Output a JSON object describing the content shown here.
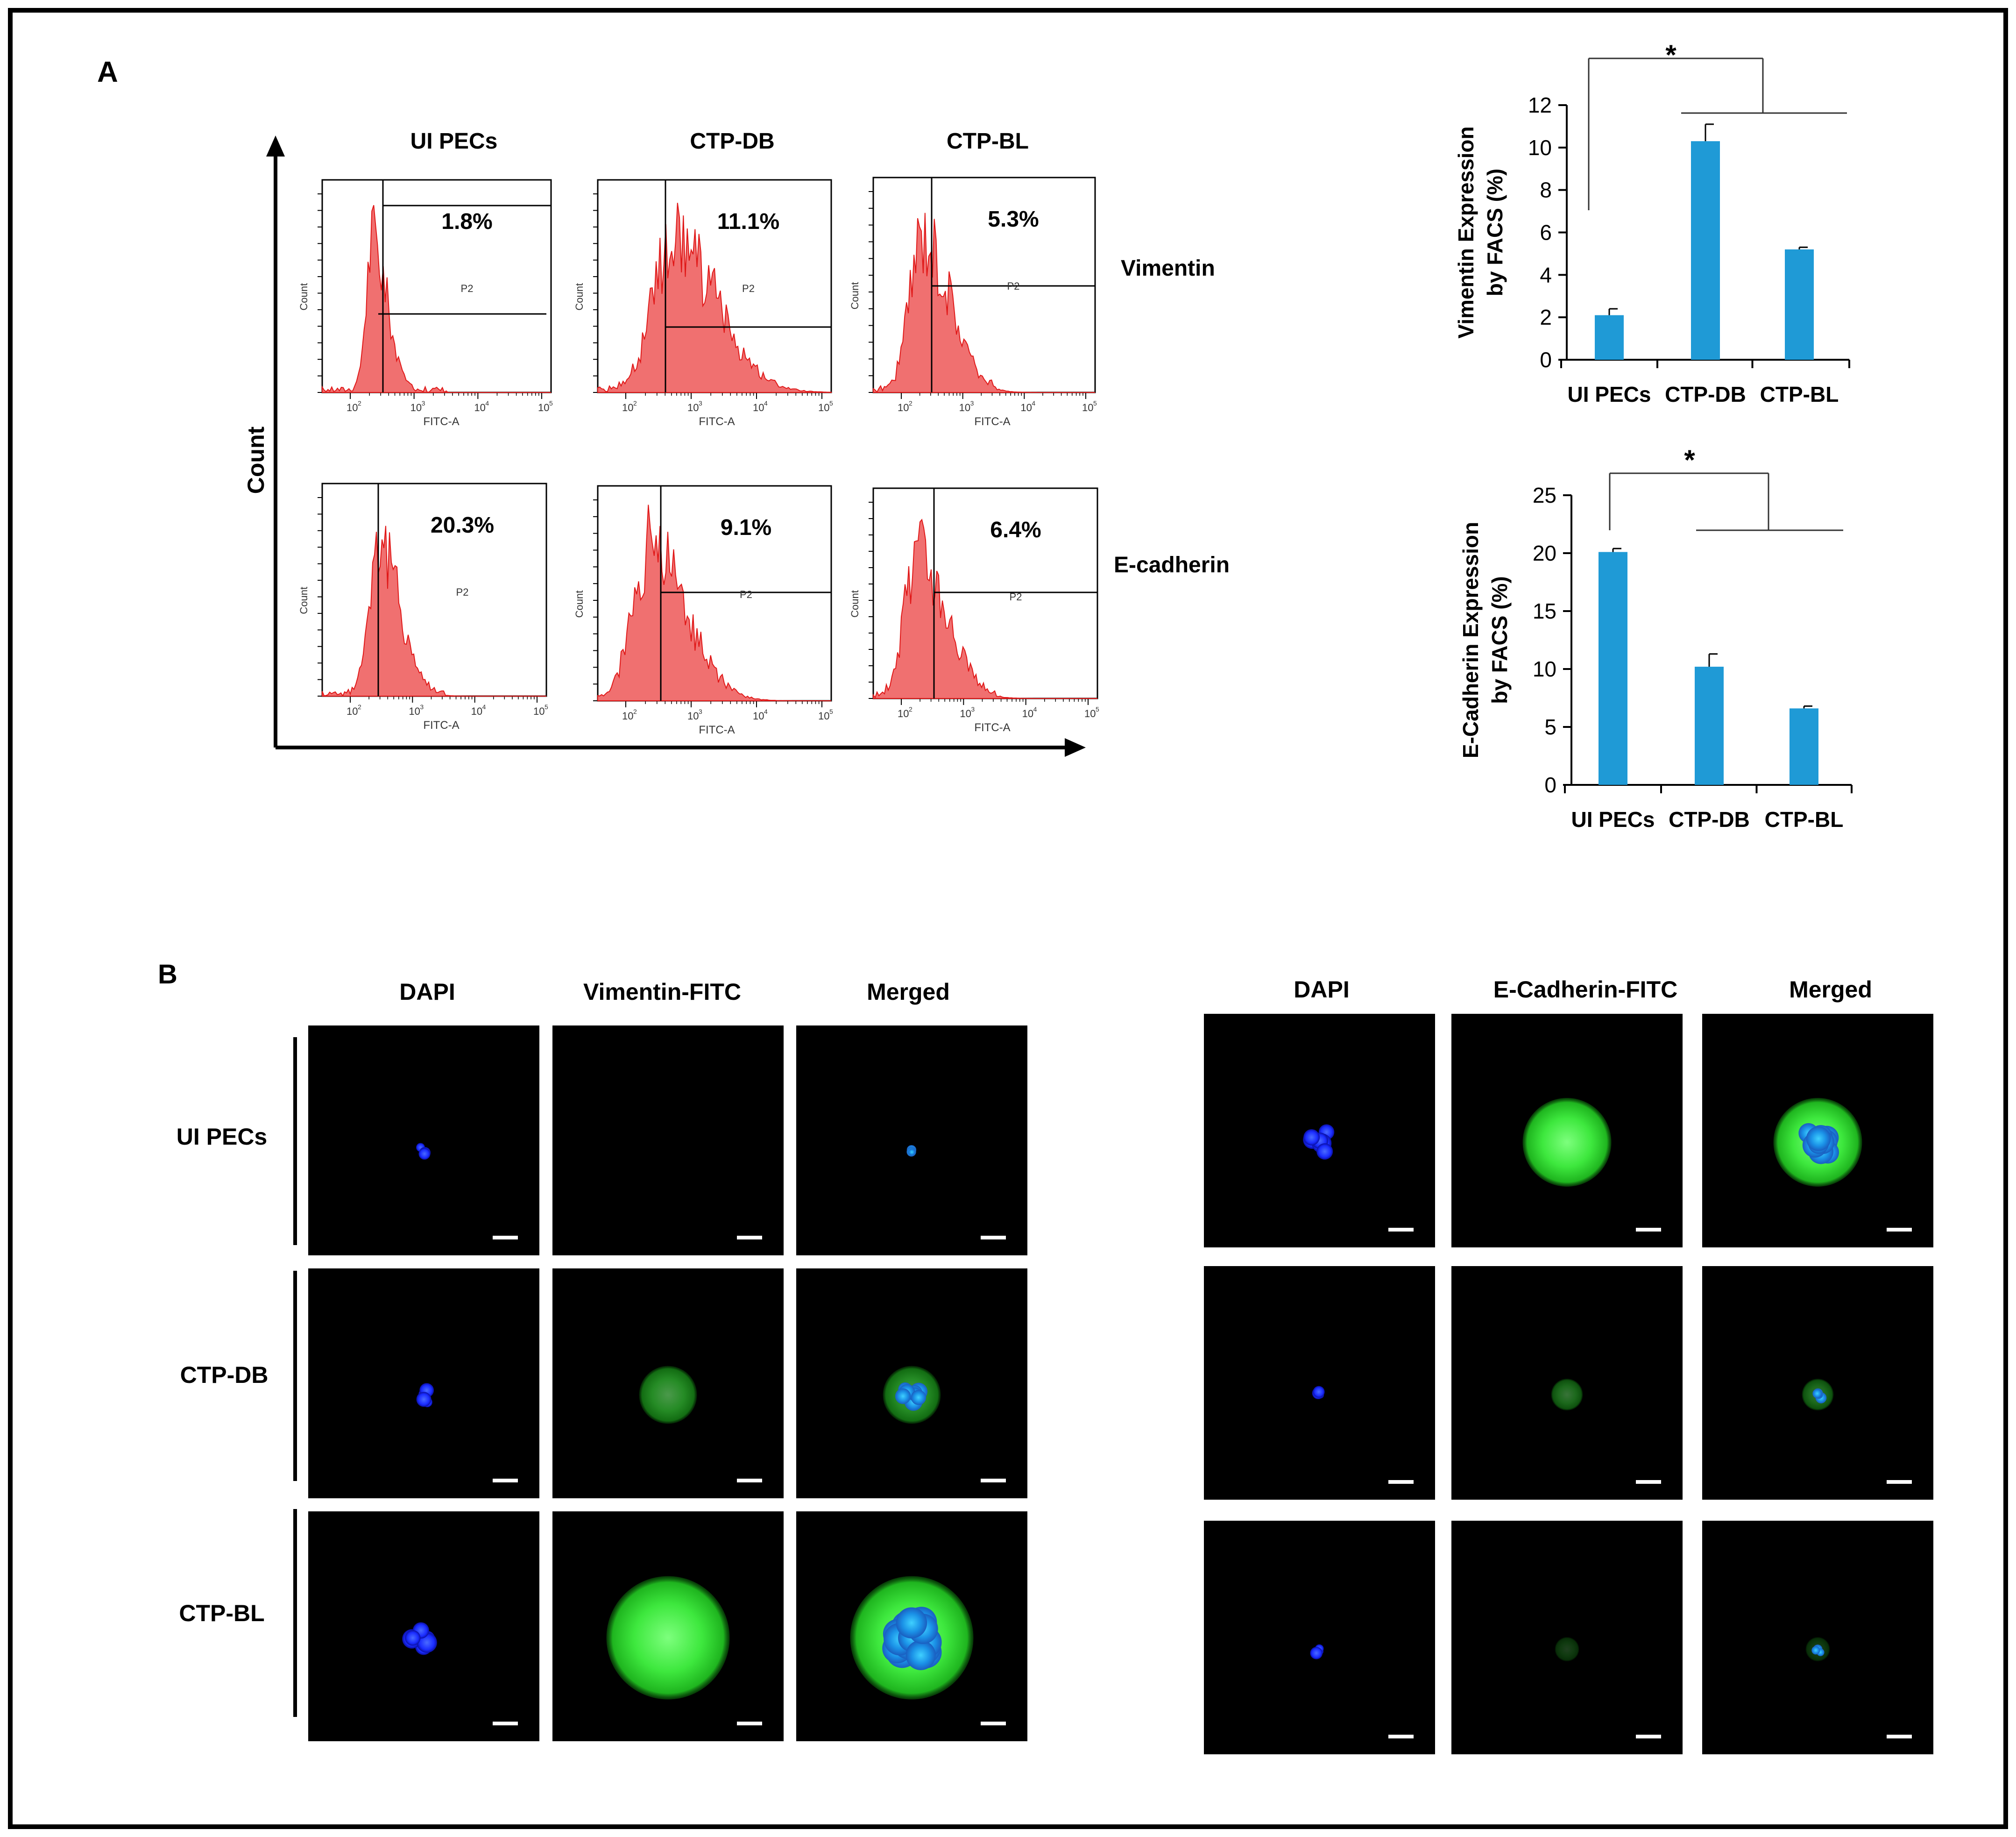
{
  "panel_labels": {
    "a": "A",
    "b": "B"
  },
  "histograms": {
    "count_axis_label": "Count",
    "columns": [
      "UI PECs",
      "CTP-DB",
      "CTP-BL"
    ],
    "rows": [
      {
        "marker": "Vimentin",
        "percents": [
          "1.8%",
          "11.1%",
          "5.3%"
        ]
      },
      {
        "marker": "E-cadherin",
        "percents": [
          "20.3%",
          "9.1%",
          "6.4%"
        ]
      }
    ],
    "gate_label": "P2",
    "x_label": "FITC-A",
    "y_label": "Count",
    "decade_labels": [
      "10",
      "10",
      "10",
      "10"
    ],
    "decade_exponents": [
      "2",
      "3",
      "4",
      "5"
    ]
  },
  "chart_data": [
    {
      "type": "bar",
      "categories": [
        "UI PECs",
        "CTP-DB",
        "CTP-BL"
      ],
      "values": [
        2.1,
        10.3,
        5.2
      ],
      "errors": [
        0.3,
        0.8,
        0.1
      ],
      "ylabel_lines": [
        "Vimentin Expression",
        "by FACS (%)"
      ],
      "ylim": [
        0,
        12
      ],
      "yticks": [
        "0",
        "2",
        "4",
        "6",
        "8",
        "10",
        "12"
      ],
      "significance": "*",
      "color": "#1f9ad6"
    },
    {
      "type": "bar",
      "categories": [
        "UI PECs",
        "CTP-DB",
        "CTP-BL"
      ],
      "values": [
        20.1,
        10.2,
        6.6
      ],
      "errors": [
        0.3,
        1.1,
        0.2
      ],
      "ylabel_lines": [
        "E-Cadherin Expression",
        "by FACS (%)"
      ],
      "ylim": [
        0,
        25
      ],
      "yticks": [
        "0",
        "5",
        "10",
        "15",
        "20",
        "25"
      ],
      "significance": "*",
      "color": "#1f9ad6"
    }
  ],
  "microscopy": {
    "left": {
      "columns": [
        "DAPI",
        "Vimentin-FITC",
        "Merged"
      ],
      "rows": [
        "UI PECs",
        "CTP-DB",
        "CTP-BL"
      ]
    },
    "right": {
      "columns": [
        "DAPI",
        "E-Cadherin-FITC",
        "Merged"
      ]
    }
  }
}
